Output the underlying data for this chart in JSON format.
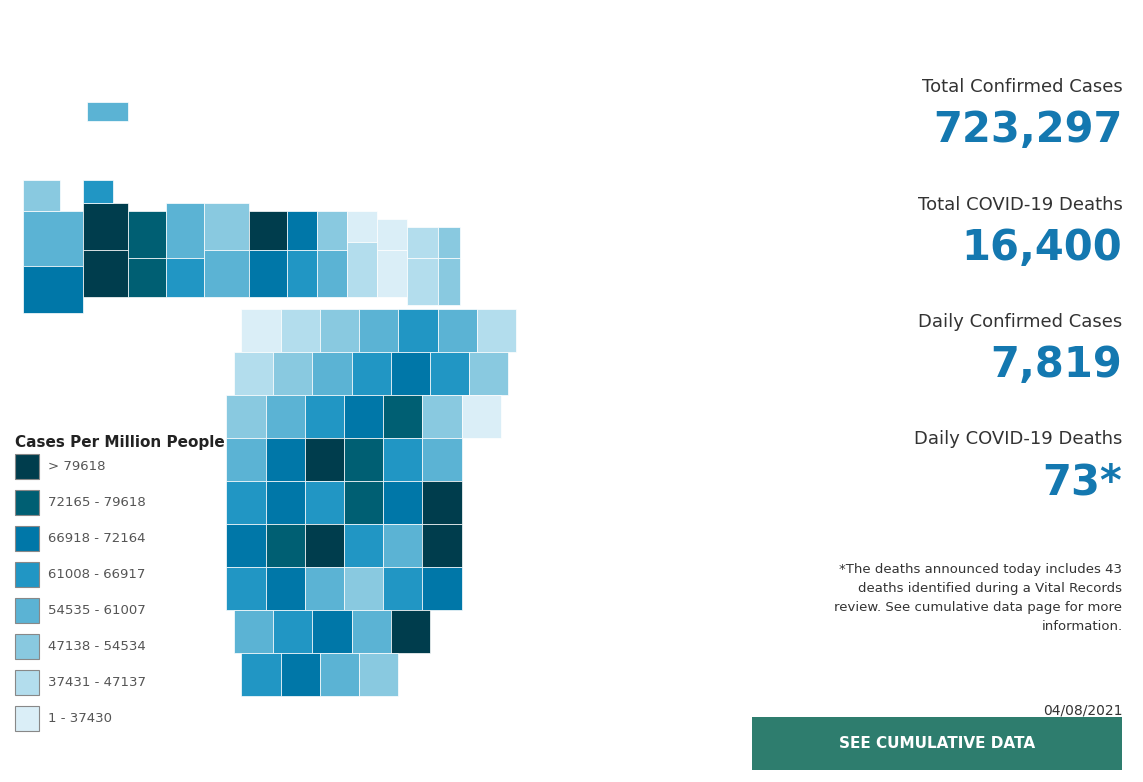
{
  "title_label1": "Total Confirmed Cases",
  "value1": "723,297",
  "title_label2": "Total COVID-19 Deaths",
  "value2": "16,400",
  "title_label3": "Daily Confirmed Cases",
  "value3": "7,819",
  "title_label4": "Daily COVID-19 Deaths",
  "value4": "73*",
  "footnote": "*The deaths announced today includes 43\ndeaths identified during a Vital Records\nreview. See cumulative data page for more\ninformation.",
  "date": "04/08/2021",
  "button_text": "SEE CUMULATIVE DATA",
  "legend_title": "Cases Per Million People",
  "legend_labels": [
    "> 79618",
    "72165 - 79618",
    "66918 - 72164",
    "61008 - 66917",
    "54535 - 61007",
    "47138 - 54534",
    "37431 - 47137",
    "1 - 37430"
  ],
  "legend_colors": [
    "#003d4d",
    "#005f73",
    "#0077a8",
    "#2196c4",
    "#5bb3d4",
    "#89c9e0",
    "#b3dded",
    "#daeef7"
  ],
  "value_color": "#1478b0",
  "label_color": "#333333",
  "button_color": "#2e7d6e",
  "button_text_color": "#ffffff",
  "background_color": "#ffffff"
}
